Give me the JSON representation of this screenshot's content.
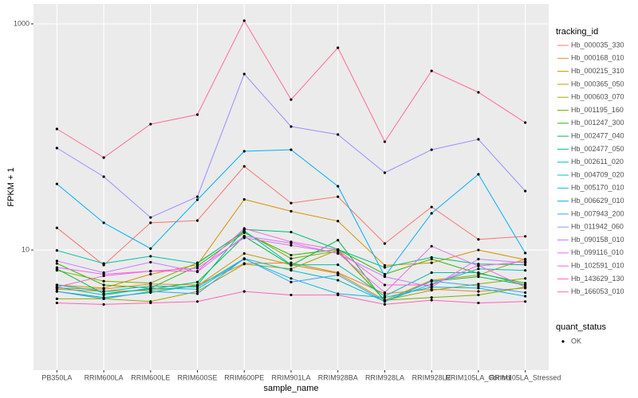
{
  "chart_data": {
    "type": "line",
    "x_label": "sample_name",
    "y_label": "FPKM + 1",
    "categories": [
      "PB350LA",
      "RRIM600LA",
      "RRIM600LE",
      "RRIM600SE",
      "RRIM600PE",
      "RRIM901LA",
      "RRIM928BA",
      "RRIM928LA",
      "RRIM928LE",
      "RRIM105LA_Control",
      "RRIM105LA_Stressed"
    ],
    "log_y": true,
    "grid": true,
    "ylim": [
      0.865,
      1500
    ],
    "yticks": [
      10,
      1000
    ],
    "legend_title": "tracking_id",
    "legend2_title": "quant_status",
    "legend2_entries": [
      "OK"
    ],
    "point_color": "#000000",
    "series": [
      {
        "name": "Hb_000035_330",
        "color": "#F8766D",
        "values": [
          15.7,
          7.35,
          17.4,
          18.2,
          54.9,
          26.0,
          29.6,
          11.4,
          24.0,
          12.4,
          13.2
        ]
      },
      {
        "name": "Hb_000168_010",
        "color": "#EA8331",
        "values": [
          4.6,
          4.5,
          5.0,
          4.9,
          7.6,
          7.7,
          6.3,
          4.1,
          4.5,
          4.3,
          4.6
        ]
      },
      {
        "name": "Hb_000215_310",
        "color": "#D89000",
        "values": [
          4.9,
          4.6,
          6.1,
          7.4,
          28,
          22,
          18,
          7.3,
          7.7,
          10,
          8.2
        ]
      },
      {
        "name": "Hb_000365_050",
        "color": "#C09B00",
        "values": [
          4.5,
          4.3,
          4.4,
          4.8,
          9.3,
          7.4,
          6.2,
          3.6,
          5.4,
          6.0,
          8.3
        ]
      },
      {
        "name": "Hb_000603_070",
        "color": "#A3A500",
        "values": [
          3.7,
          3.7,
          3.5,
          4.3,
          7.5,
          6.8,
          10,
          3.6,
          4.4,
          5.0,
          5.6
        ]
      },
      {
        "name": "Hb_001195_160",
        "color": "#7CAE00",
        "values": [
          6.6,
          5.3,
          5.1,
          7.7,
          14.5,
          8.4,
          9.8,
          3.6,
          3.8,
          4.0,
          4.7
        ]
      },
      {
        "name": "Hb_001247_300",
        "color": "#39B600",
        "values": [
          7.6,
          4.9,
          4.6,
          7.2,
          14.2,
          9.0,
          10.1,
          6.1,
          8.3,
          6.2,
          5.1
        ]
      },
      {
        "name": "Hb_002477_040",
        "color": "#00BB4E",
        "values": [
          6.8,
          4.1,
          4.5,
          5.2,
          13.2,
          7.3,
          12.2,
          3.5,
          5.3,
          5.8,
          4.9
        ]
      },
      {
        "name": "Hb_002477_050",
        "color": "#00BF7D",
        "values": [
          4.3,
          3.8,
          4.2,
          4.9,
          15.2,
          14.4,
          10.1,
          7.0,
          8.6,
          7.5,
          7.4
        ]
      },
      {
        "name": "Hb_002611_020",
        "color": "#00C1A3",
        "values": [
          9.9,
          7.6,
          8.8,
          7.6,
          14.8,
          7.4,
          7.4,
          3.9,
          6.3,
          6.3,
          4.9
        ]
      },
      {
        "name": "Hb_004709_020",
        "color": "#00BFC4",
        "values": [
          4.9,
          4.3,
          4.8,
          4.7,
          8.4,
          6.6,
          5.4,
          3.5,
          5.0,
          6.8,
          6.6
        ]
      },
      {
        "name": "Hb_005170_010",
        "color": "#00BAE0",
        "values": [
          4.7,
          4.0,
          4.6,
          4.5,
          8.3,
          5.6,
          4.1,
          3.8,
          4.7,
          4.6,
          3.9
        ]
      },
      {
        "name": "Hb_006629_010",
        "color": "#00B0F6",
        "values": [
          38.4,
          17.4,
          10.3,
          27.8,
          74.7,
          77.1,
          36.6,
          5.86,
          21.1,
          46.7,
          9.4
        ]
      },
      {
        "name": "Hb_007943_200",
        "color": "#35A2FF",
        "values": [
          4.3,
          3.7,
          4.3,
          4.1,
          8.4,
          5.2,
          6.0,
          3.5,
          5.3,
          4.8,
          4.2
        ]
      },
      {
        "name": "Hb_011942_060",
        "color": "#9590FF",
        "values": [
          79.7,
          44.5,
          19.4,
          29.6,
          360,
          123.5,
          105,
          48.2,
          77.1,
          95.3,
          33.2
        ]
      },
      {
        "name": "Hb_090158_010",
        "color": "#C77CFF",
        "values": [
          8.0,
          6.3,
          7.8,
          6.4,
          13.3,
          11.5,
          9.3,
          5.8,
          4.7,
          8.3,
          7.7
        ]
      },
      {
        "name": "Hb_099116_010",
        "color": "#E76BF3",
        "values": [
          7.0,
          6.1,
          6.5,
          6.9,
          12.8,
          11.0,
          9.4,
          4.2,
          10.8,
          7.2,
          7.9
        ]
      },
      {
        "name": "Hb_102591_010",
        "color": "#FA62DB",
        "values": [
          4.7,
          5.9,
          6.5,
          6.5,
          15.5,
          11.8,
          10.0,
          4.9,
          4.9,
          7.3,
          4.7
        ]
      },
      {
        "name": "Hb_143629_130",
        "color": "#FF62BC",
        "values": [
          3.4,
          3.3,
          3.4,
          3.5,
          4.3,
          4.0,
          4.0,
          3.3,
          3.6,
          3.4,
          3.5
        ]
      },
      {
        "name": "Hb_166053_010",
        "color": "#FF6C91",
        "values": [
          117.6,
          65.6,
          129.6,
          157.5,
          1067,
          214,
          615,
          90.7,
          384,
          248,
          134
        ]
      }
    ]
  }
}
